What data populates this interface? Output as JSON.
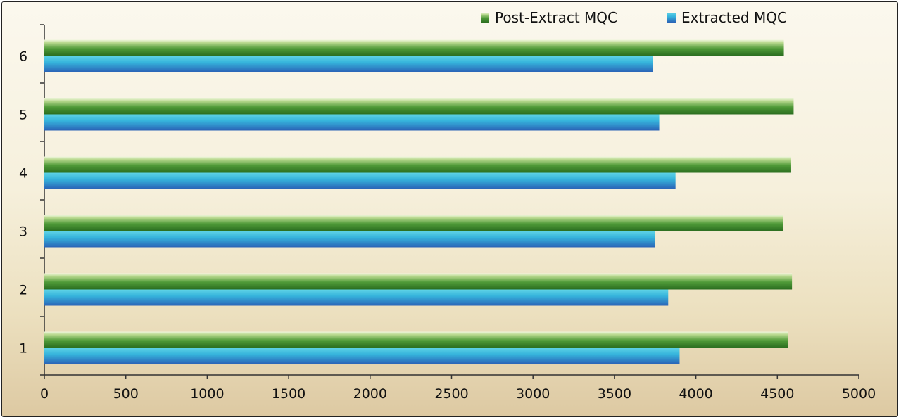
{
  "chart_data": {
    "type": "bar",
    "orientation": "horizontal",
    "categories": [
      "1",
      "2",
      "3",
      "4",
      "5",
      "6"
    ],
    "series": [
      {
        "name": "Extracted MQC",
        "values": [
          3900,
          3830,
          3750,
          3875,
          3775,
          3735
        ],
        "color": "#3a8fd0"
      },
      {
        "name": "Post-Extract MQC",
        "values": [
          4565,
          4590,
          4535,
          4585,
          4600,
          4540
        ],
        "color": "#3f8a2c"
      }
    ],
    "x_ticks": [
      "0",
      "500",
      "1000",
      "1500",
      "2000",
      "2500",
      "3000",
      "3500",
      "4000",
      "4500",
      "5000"
    ],
    "xlim": [
      0,
      5000
    ],
    "title": "",
    "xlabel": "",
    "ylabel": "",
    "grid": false,
    "legend_position": "top-right",
    "legend_order": [
      "Post-Extract MQC",
      "Extracted MQC"
    ]
  }
}
